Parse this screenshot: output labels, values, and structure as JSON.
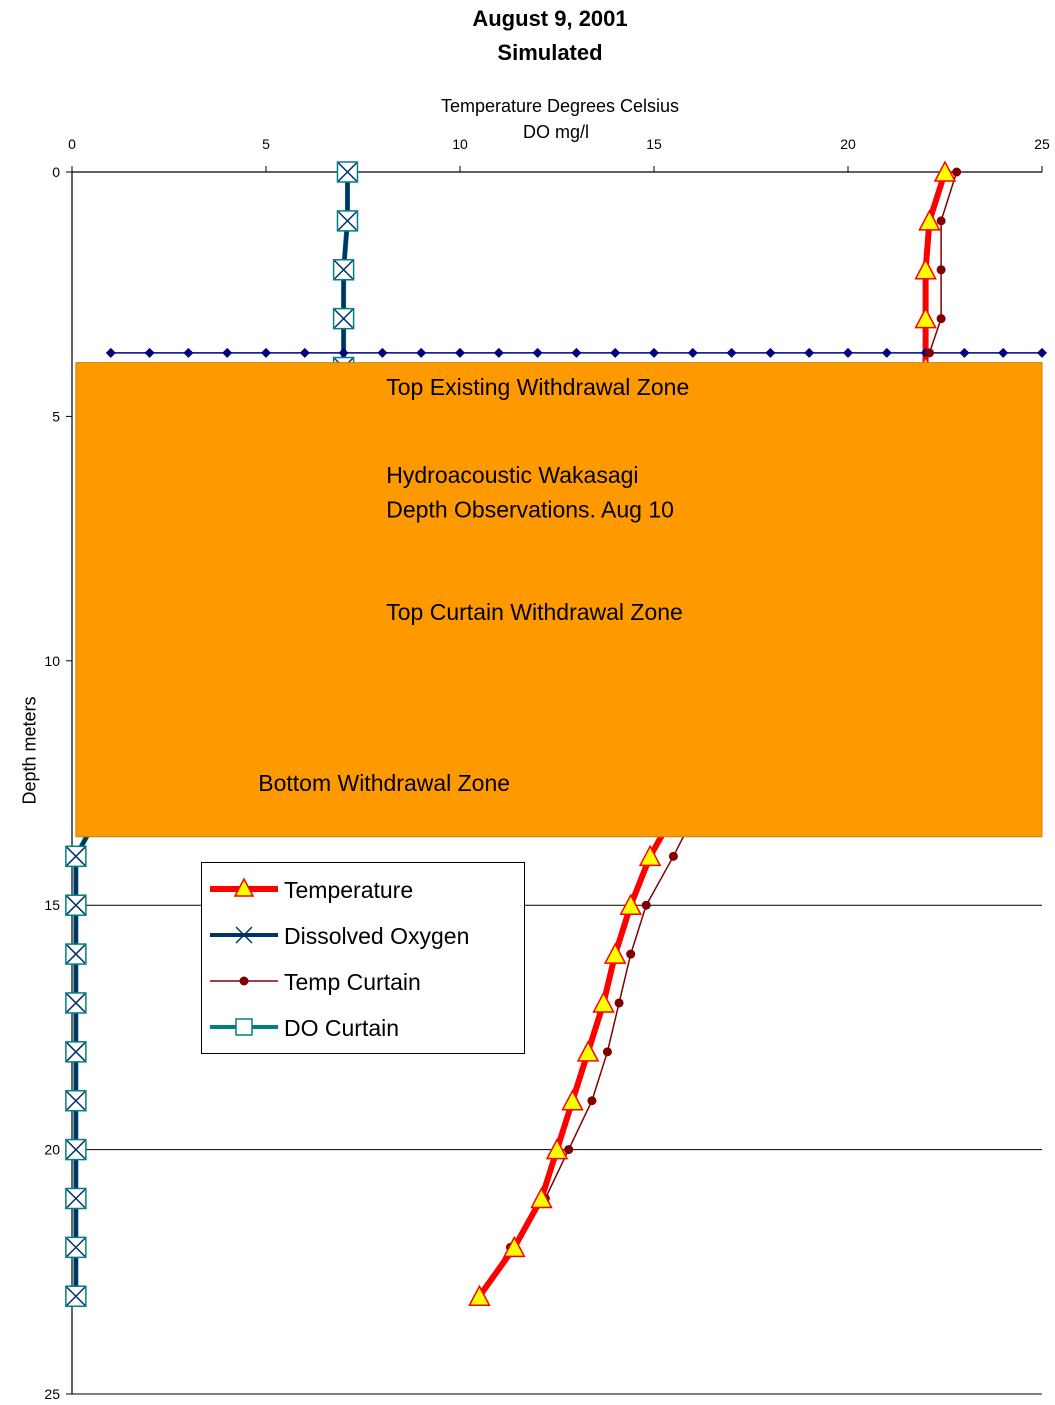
{
  "chart_data": {
    "type": "line",
    "title": "August 9, 2001",
    "subtitle": "Simulated",
    "xlabel": "Temperature Degrees Celsius",
    "xlabel2": "DO mg/l",
    "ylabel": "Depth meters",
    "xlim": [
      0,
      25
    ],
    "ylim": [
      25,
      0
    ],
    "y_inverted": true,
    "x_axis_position": "top",
    "x_ticks": [
      "0",
      "5",
      "10",
      "15",
      "20",
      "25"
    ],
    "y_ticks": [
      "0",
      "5",
      "10",
      "15",
      "20",
      "25"
    ],
    "gridlines_y": [
      15,
      20,
      25
    ],
    "colors": {
      "temperature": "#ff0000",
      "temperature_marker": "#ffff00",
      "dissolved_oxygen": "#003366",
      "temp_curtain": "#800000",
      "do_curtain": "#008080",
      "withdrawal_zone": "#ff9900",
      "threshold_line": "#000080"
    },
    "series": [
      {
        "name": "Temperature",
        "x": [
          22.5,
          22.1,
          22.0,
          22.0,
          22.0,
          14.9,
          14.4,
          14.0,
          13.7,
          13.3,
          12.9,
          12.5,
          12.1,
          11.4,
          10.5
        ],
        "y": [
          0,
          1,
          2,
          3,
          4,
          14,
          15,
          16,
          17,
          18,
          19,
          20,
          21,
          22,
          23
        ]
      },
      {
        "name": "Dissolved Oxygen",
        "x": [
          7.1,
          7.1,
          7.0,
          7.0,
          7.0,
          0.1,
          0.1,
          0.1,
          0.1,
          0.1,
          0.1,
          0.1,
          0.1,
          0.1,
          0.1
        ],
        "y": [
          0,
          1,
          2,
          3,
          4,
          14,
          15,
          16,
          17,
          18,
          19,
          20,
          21,
          22,
          23
        ]
      },
      {
        "name": "Temp Curtain",
        "x": [
          22.8,
          22.4,
          22.4,
          22.4,
          22.1,
          15.5,
          14.8,
          14.4,
          14.1,
          13.8,
          13.4,
          12.8,
          12.2,
          11.3,
          10.5
        ],
        "y": [
          0,
          1,
          2,
          3,
          3.7,
          14,
          15,
          16,
          17,
          18,
          19,
          20,
          21,
          22,
          23
        ]
      },
      {
        "name": "DO Curtain",
        "x": [
          7.1,
          7.1,
          7.0,
          7.0,
          7.0,
          0.1,
          0.1,
          0.1,
          0.1,
          0.1,
          0.1,
          0.1,
          0.1,
          0.1,
          0.1
        ],
        "y": [
          0,
          1,
          2,
          3,
          4,
          14,
          15,
          16,
          17,
          18,
          19,
          20,
          21,
          22,
          23
        ]
      }
    ],
    "threshold_line": {
      "y": 3.7,
      "x_points": [
        1,
        2,
        3,
        4,
        5,
        6,
        7,
        8,
        9,
        10,
        11,
        12,
        13,
        14,
        15,
        16,
        17,
        18,
        19,
        20,
        21,
        22,
        23,
        24,
        25
      ]
    },
    "shaded_region": {
      "y_from": 3.9,
      "y_to": 13.6
    },
    "annotations": [
      {
        "text": "Top Existing Withdrawal Zone",
        "x": 8.1,
        "y": 4.4
      },
      {
        "text": "Hydroacoustic Wakasagi",
        "x": 8.1,
        "y": 6.2
      },
      {
        "text": "Depth Observations.  Aug 10",
        "x": 8.1,
        "y": 6.9
      },
      {
        "text": "Top Curtain Withdrawal Zone",
        "x": 8.1,
        "y": 9.0
      },
      {
        "text": "Bottom Withdrawal Zone",
        "x": 4.8,
        "y": 12.5
      }
    ],
    "legend": {
      "position": "lower-left",
      "entries": [
        "Temperature",
        "Dissolved Oxygen",
        "Temp Curtain",
        "DO Curtain"
      ]
    }
  }
}
